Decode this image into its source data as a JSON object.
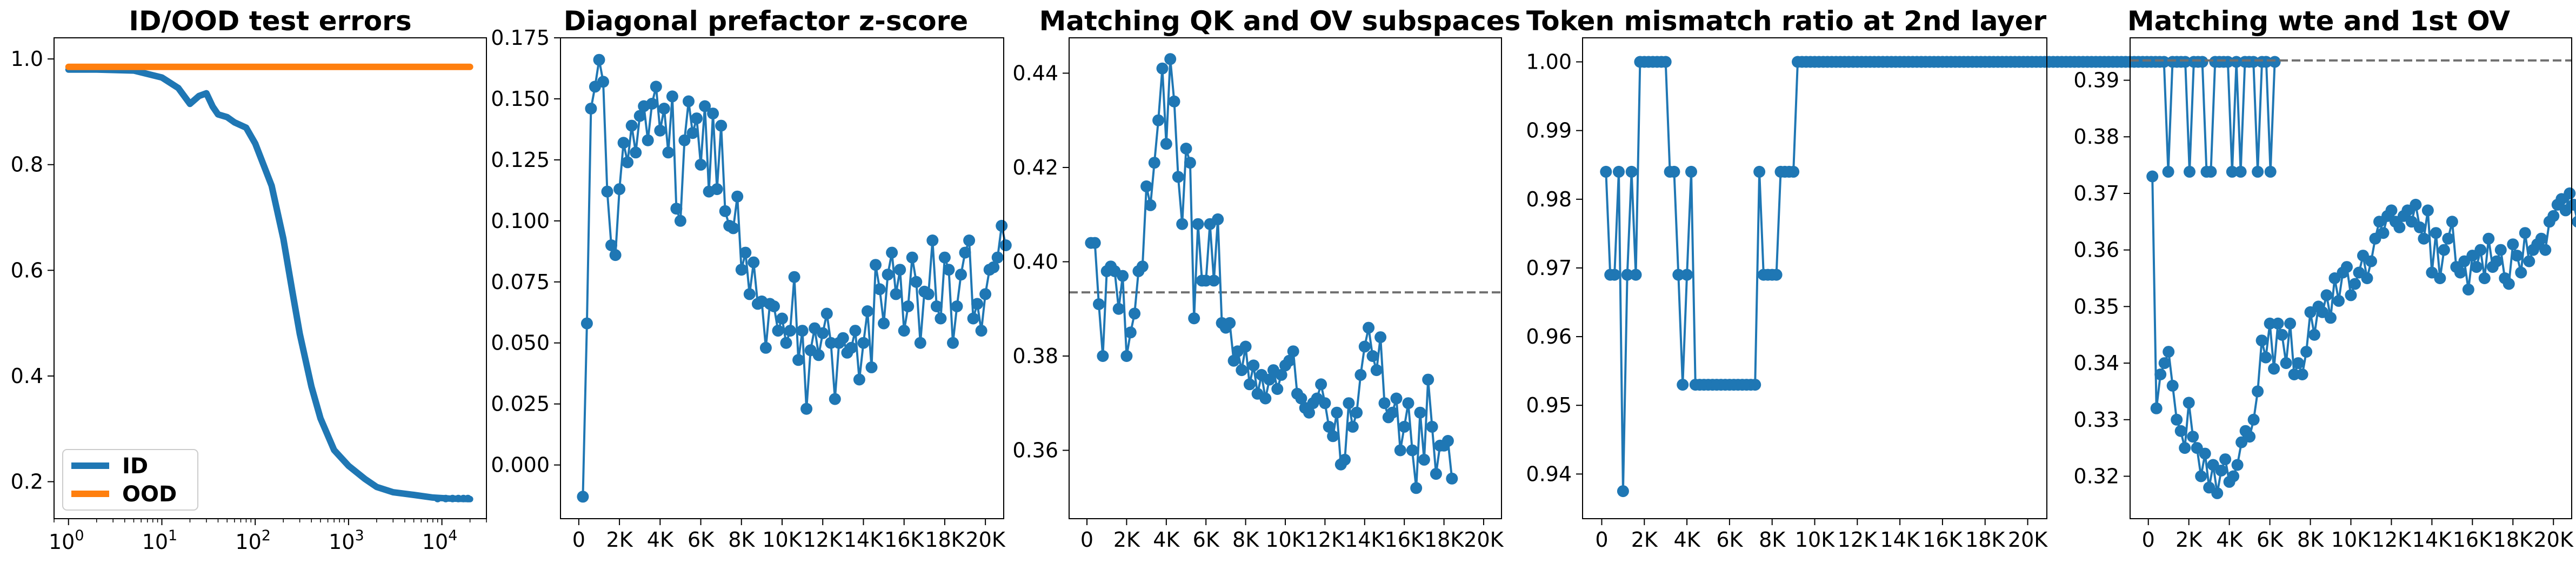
{
  "figure": {
    "colors": {
      "blue": "#1f77b4",
      "orange": "#ff7f0e",
      "reference": "#707070"
    }
  },
  "chart_data": [
    {
      "type": "line",
      "title": "ID/OOD test errors",
      "xscale": "log",
      "xlim": [
        0.7,
        30000
      ],
      "ylim": [
        0.13,
        1.04
      ],
      "xticks": [
        1,
        10,
        100,
        1000,
        10000
      ],
      "xtick_labels": [
        {
          "base": "10",
          "exp": "0"
        },
        {
          "base": "10",
          "exp": "1"
        },
        {
          "base": "10",
          "exp": "2"
        },
        {
          "base": "10",
          "exp": "3"
        },
        {
          "base": "10",
          "exp": "4"
        }
      ],
      "yticks": [
        0.2,
        0.4,
        0.6,
        0.8,
        1.0
      ],
      "ytick_labels": [
        "0.2",
        "0.4",
        "0.6",
        "0.8",
        "1.0"
      ],
      "legend": "lower-left",
      "legend_entries": [
        "ID",
        "OOD"
      ],
      "series": [
        {
          "name": "ID",
          "color": "#1f77b4",
          "x": [
            1,
            2,
            5,
            10,
            15,
            20,
            25,
            30,
            35,
            40,
            50,
            60,
            80,
            100,
            150,
            200,
            250,
            300,
            400,
            500,
            700,
            1000,
            1500,
            2000,
            3000,
            5000,
            8000,
            12000,
            20000
          ],
          "values": [
            0.98,
            0.98,
            0.978,
            0.965,
            0.945,
            0.915,
            0.93,
            0.935,
            0.91,
            0.895,
            0.89,
            0.88,
            0.87,
            0.84,
            0.76,
            0.66,
            0.56,
            0.48,
            0.38,
            0.32,
            0.26,
            0.23,
            0.205,
            0.19,
            0.18,
            0.175,
            0.17,
            0.168,
            0.167
          ]
        },
        {
          "name": "OOD",
          "color": "#ff7f0e",
          "x": [
            1,
            10,
            100,
            1000,
            10000,
            20000
          ],
          "values": [
            0.985,
            0.985,
            0.985,
            0.985,
            0.985,
            0.985
          ]
        }
      ]
    },
    {
      "type": "line",
      "title": "Diagonal prefactor z-score",
      "xlim": [
        -900,
        20900
      ],
      "ylim": [
        -0.022,
        0.175
      ],
      "xticks": [
        0,
        2000,
        4000,
        6000,
        8000,
        10000,
        12000,
        14000,
        16000,
        18000,
        20000
      ],
      "xtick_labels": [
        "0",
        "2K",
        "4K",
        "6K",
        "8K",
        "10K",
        "12K",
        "14K",
        "16K",
        "18K",
        "20K"
      ],
      "yticks": [
        0.0,
        0.025,
        0.05,
        0.075,
        0.1,
        0.125,
        0.15,
        0.175
      ],
      "ytick_labels": [
        "0.000",
        "0.025",
        "0.050",
        "0.075",
        "0.100",
        "0.125",
        "0.150",
        "0.175"
      ],
      "series": [
        {
          "color": "#1f77b4",
          "x_start": 200,
          "x_step": 200,
          "values": [
            -0.013,
            0.058,
            0.146,
            0.155,
            0.166,
            0.157,
            0.112,
            0.09,
            0.086,
            0.113,
            0.132,
            0.124,
            0.139,
            0.128,
            0.143,
            0.147,
            0.133,
            0.148,
            0.155,
            0.137,
            0.146,
            0.128,
            0.151,
            0.105,
            0.1,
            0.133,
            0.149,
            0.136,
            0.142,
            0.123,
            0.147,
            0.112,
            0.144,
            0.113,
            0.139,
            0.104,
            0.098,
            0.097,
            0.11,
            0.08,
            0.087,
            0.07,
            0.083,
            0.066,
            0.067,
            0.048,
            0.066,
            0.065,
            0.055,
            0.06,
            0.05,
            0.055,
            0.077,
            0.043,
            0.055,
            0.023,
            0.047,
            0.056,
            0.045,
            0.054,
            0.062,
            0.05,
            0.027,
            0.05,
            0.052,
            0.046,
            0.048,
            0.055,
            0.035,
            0.05,
            0.063,
            0.04,
            0.082,
            0.072,
            0.058,
            0.078,
            0.087,
            0.07,
            0.08,
            0.055,
            0.065,
            0.085,
            0.075,
            0.05,
            0.071,
            0.07,
            0.092,
            0.065,
            0.06,
            0.085,
            0.08,
            0.05,
            0.065,
            0.078,
            0.087,
            0.092,
            0.06,
            0.066,
            0.055,
            0.07,
            0.08,
            0.081,
            0.085,
            0.098,
            0.09
          ]
        }
      ]
    },
    {
      "type": "line",
      "title": "Matching QK and OV subspaces",
      "xlim": [
        -900,
        20900
      ],
      "ylim": [
        0.3455,
        0.4475
      ],
      "xticks": [
        0,
        2000,
        4000,
        6000,
        8000,
        10000,
        12000,
        14000,
        16000,
        18000,
        20000
      ],
      "xtick_labels": [
        "0",
        "2K",
        "4K",
        "6K",
        "8K",
        "10K",
        "12K",
        "14K",
        "16K",
        "18K",
        "20K"
      ],
      "yticks": [
        0.36,
        0.38,
        0.4,
        0.42,
        0.44
      ],
      "ytick_labels": [
        "0.36",
        "0.38",
        "0.40",
        "0.42",
        "0.44"
      ],
      "reference_line": 0.3935,
      "series": [
        {
          "color": "#1f77b4",
          "x_start": 200,
          "x_step": 200,
          "values": [
            0.404,
            0.404,
            0.391,
            0.38,
            0.398,
            0.399,
            0.398,
            0.39,
            0.397,
            0.38,
            0.385,
            0.389,
            0.398,
            0.399,
            0.416,
            0.412,
            0.421,
            0.43,
            0.441,
            0.425,
            0.443,
            0.434,
            0.418,
            0.408,
            0.424,
            0.421,
            0.388,
            0.408,
            0.396,
            0.396,
            0.408,
            0.396,
            0.409,
            0.387,
            0.386,
            0.387,
            0.379,
            0.381,
            0.377,
            0.382,
            0.374,
            0.378,
            0.372,
            0.376,
            0.371,
            0.375,
            0.377,
            0.373,
            0.376,
            0.378,
            0.379,
            0.381,
            0.372,
            0.371,
            0.369,
            0.368,
            0.37,
            0.371,
            0.374,
            0.37,
            0.365,
            0.363,
            0.368,
            0.357,
            0.358,
            0.37,
            0.365,
            0.368,
            0.376,
            0.382,
            0.386,
            0.38,
            0.377,
            0.384,
            0.37,
            0.367,
            0.368,
            0.371,
            0.36,
            0.365,
            0.37,
            0.36,
            0.352,
            0.368,
            0.358,
            0.375,
            0.365,
            0.355,
            0.361,
            0.361,
            0.362,
            0.354
          ]
        }
      ]
    },
    {
      "type": "line",
      "title": "Token mismatch ratio at 2nd layer",
      "xlim": [
        -900,
        20900
      ],
      "ylim": [
        0.9335,
        1.0035
      ],
      "xticks": [
        0,
        2000,
        4000,
        6000,
        8000,
        10000,
        12000,
        14000,
        16000,
        18000,
        20000
      ],
      "xtick_labels": [
        "0",
        "2K",
        "4K",
        "6K",
        "8K",
        "10K",
        "12K",
        "14K",
        "16K",
        "18K",
        "20K"
      ],
      "yticks": [
        0.94,
        0.95,
        0.96,
        0.97,
        0.98,
        0.99,
        1.0
      ],
      "ytick_labels": [
        "0.94",
        "0.95",
        "0.96",
        "0.97",
        "0.98",
        "0.99",
        "1.00"
      ],
      "series": [
        {
          "color": "#1f77b4",
          "x_start": 200,
          "x_step": 200,
          "values": [
            0.984,
            0.969,
            0.969,
            0.984,
            0.9375,
            0.969,
            0.984,
            0.969,
            1.0,
            1.0,
            1.0,
            1.0,
            1.0,
            1.0,
            1.0,
            0.984,
            0.984,
            0.969,
            0.953,
            0.969,
            0.984,
            0.953,
            0.953,
            0.953,
            0.953,
            0.953,
            0.953,
            0.953,
            0.953,
            0.953,
            0.953,
            0.953,
            0.953,
            0.953,
            0.953,
            0.953,
            0.984,
            0.969,
            0.969,
            0.969,
            0.969,
            0.984,
            0.984,
            0.984,
            0.984,
            1.0,
            1.0,
            1.0,
            1.0,
            1.0,
            1.0,
            1.0,
            1.0,
            1.0,
            1.0,
            1.0,
            1.0,
            1.0,
            1.0,
            1.0,
            1.0,
            1.0,
            1.0,
            1.0,
            1.0,
            1.0,
            1.0,
            1.0,
            1.0,
            1.0,
            1.0,
            1.0,
            1.0,
            1.0,
            1.0,
            1.0,
            1.0,
            1.0,
            1.0,
            1.0,
            1.0,
            1.0,
            1.0,
            1.0,
            1.0,
            1.0,
            1.0,
            1.0,
            1.0,
            1.0,
            1.0,
            1.0,
            1.0,
            1.0,
            1.0,
            1.0,
            1.0,
            1.0,
            1.0,
            1.0,
            1.0,
            1.0,
            1.0,
            1.0,
            1.0,
            1.0,
            1.0,
            1.0,
            1.0,
            1.0,
            1.0,
            1.0,
            1.0,
            1.0,
            1.0,
            1.0,
            1.0,
            1.0,
            1.0,
            1.0,
            1.0,
            1.0,
            1.0,
            1.0,
            1.0,
            1.0,
            1.0,
            1.0,
            1.0,
            1.0,
            1.0,
            1.0,
            0.984,
            1.0,
            1.0,
            1.0,
            1.0,
            0.984,
            1.0,
            1.0,
            1.0,
            0.984,
            0.984,
            1.0,
            1.0,
            1.0,
            1.0,
            0.984,
            1.0,
            0.984,
            1.0,
            1.0,
            1.0,
            0.984,
            1.0,
            1.0,
            0.984,
            1.0
          ]
        }
      ]
    },
    {
      "type": "line",
      "title": "Matching wte and 1st OV",
      "xlim": [
        -900,
        20900
      ],
      "ylim": [
        0.3125,
        0.3975
      ],
      "xticks": [
        0,
        2000,
        4000,
        6000,
        8000,
        10000,
        12000,
        14000,
        16000,
        18000,
        20000
      ],
      "xtick_labels": [
        "0",
        "2K",
        "4K",
        "6K",
        "8K",
        "10K",
        "12K",
        "14K",
        "16K",
        "18K",
        "20K"
      ],
      "yticks": [
        0.32,
        0.33,
        0.34,
        0.35,
        0.36,
        0.37,
        0.38,
        0.39
      ],
      "ytick_labels": [
        "0.32",
        "0.33",
        "0.34",
        "0.35",
        "0.36",
        "0.37",
        "0.38",
        "0.39"
      ],
      "reference_line": 0.3935,
      "series": [
        {
          "color": "#1f77b4",
          "x_start": 200,
          "x_step": 200,
          "values": [
            0.373,
            0.332,
            0.338,
            0.34,
            0.342,
            0.336,
            0.33,
            0.328,
            0.325,
            0.333,
            0.327,
            0.325,
            0.32,
            0.324,
            0.318,
            0.322,
            0.317,
            0.321,
            0.323,
            0.319,
            0.32,
            0.322,
            0.326,
            0.328,
            0.327,
            0.33,
            0.335,
            0.344,
            0.341,
            0.347,
            0.339,
            0.347,
            0.345,
            0.34,
            0.347,
            0.338,
            0.34,
            0.338,
            0.342,
            0.349,
            0.345,
            0.35,
            0.349,
            0.352,
            0.348,
            0.355,
            0.351,
            0.356,
            0.357,
            0.352,
            0.354,
            0.356,
            0.359,
            0.355,
            0.358,
            0.362,
            0.365,
            0.363,
            0.366,
            0.367,
            0.365,
            0.364,
            0.366,
            0.367,
            0.365,
            0.368,
            0.364,
            0.362,
            0.367,
            0.356,
            0.363,
            0.355,
            0.36,
            0.362,
            0.365,
            0.357,
            0.356,
            0.358,
            0.353,
            0.359,
            0.357,
            0.36,
            0.355,
            0.362,
            0.357,
            0.358,
            0.36,
            0.355,
            0.354,
            0.361,
            0.359,
            0.356,
            0.363,
            0.358,
            0.36,
            0.361,
            0.362,
            0.36,
            0.365,
            0.366,
            0.368,
            0.369,
            0.367,
            0.37,
            0.368,
            0.365,
            0.367,
            0.364,
            0.367,
            0.366,
            0.365
          ]
        }
      ]
    }
  ]
}
